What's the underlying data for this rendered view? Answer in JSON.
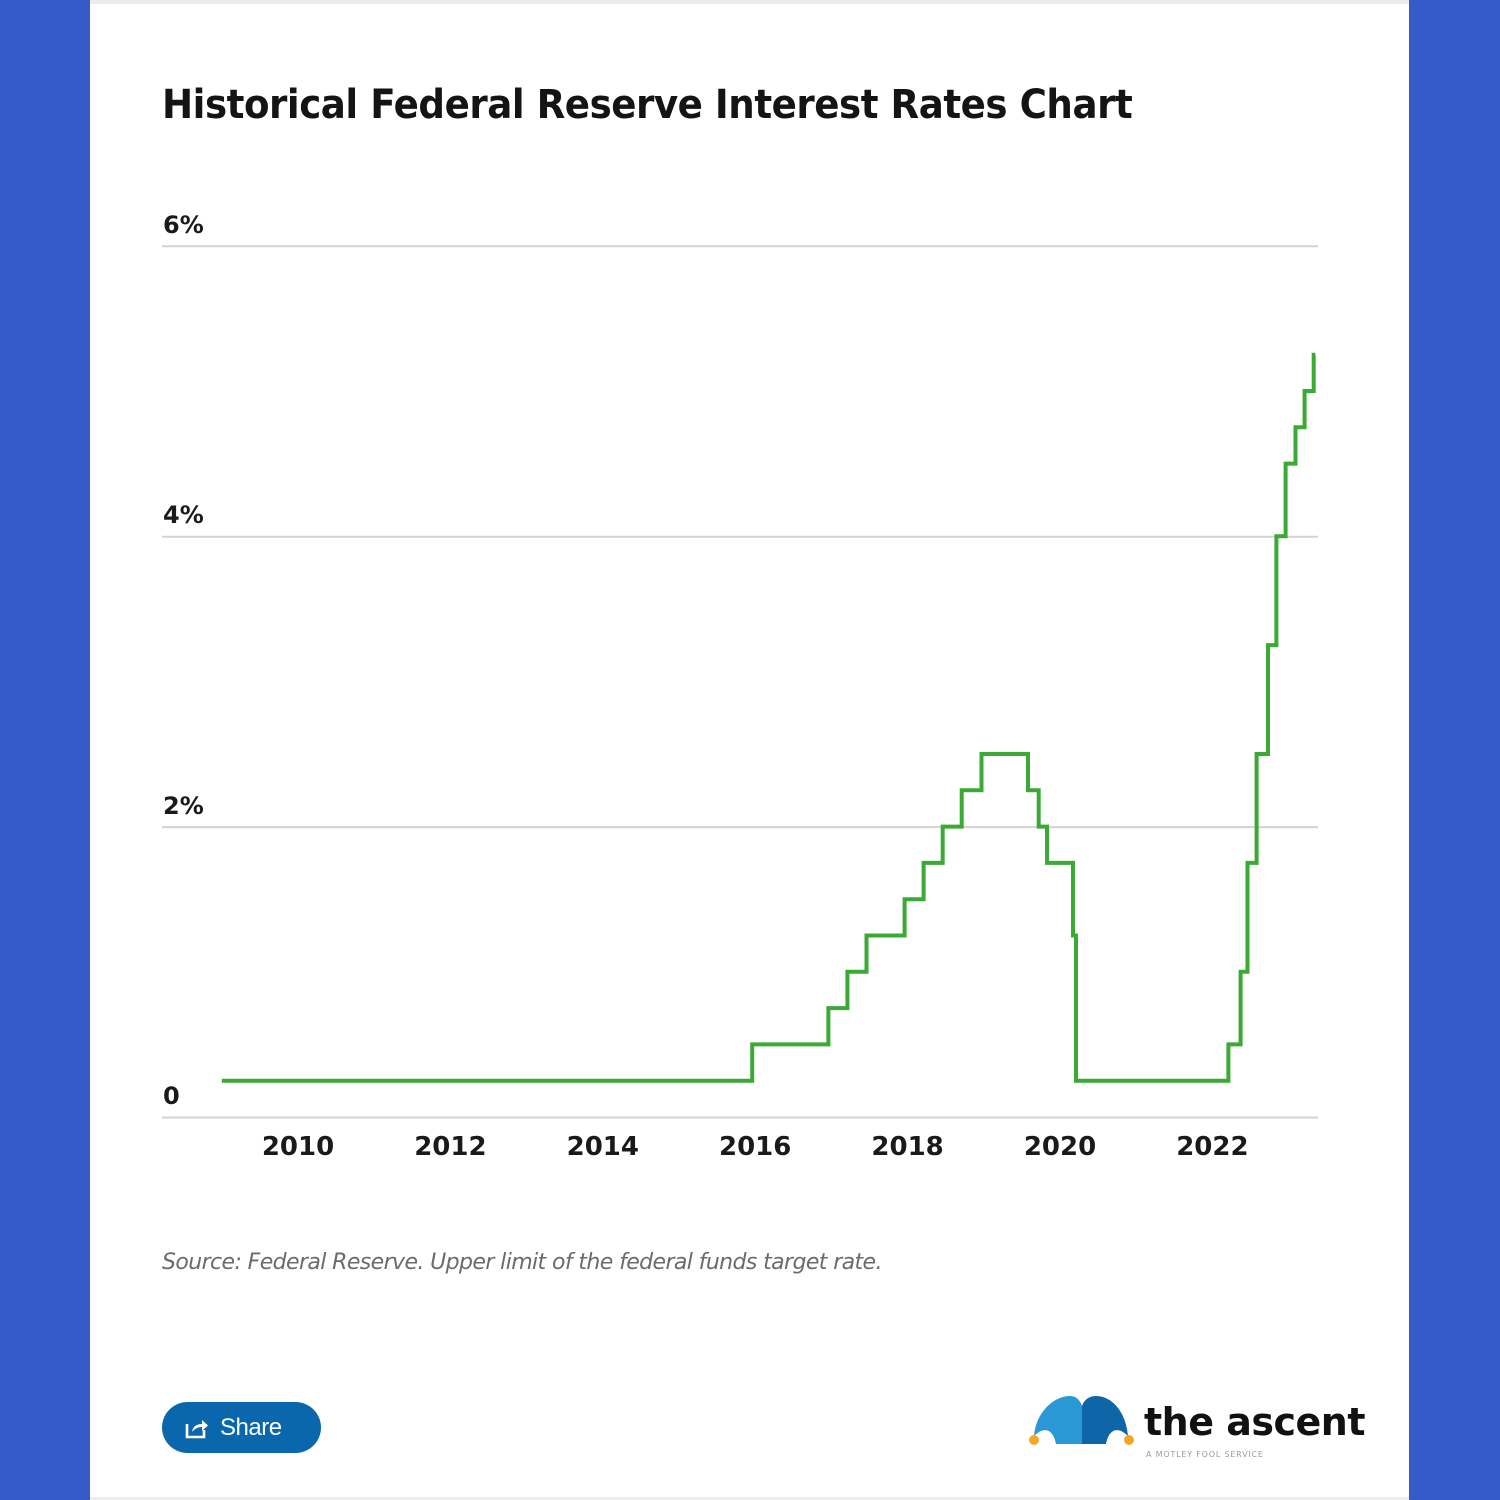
{
  "page": {
    "background_color": "#365ac7",
    "card_color": "#ffffff"
  },
  "title": "Historical Federal Reserve Interest Rates Chart",
  "source_note": "Source: Federal Reserve. Upper limit of the federal funds target rate.",
  "share_button": {
    "label": "Share",
    "icon": "share-icon",
    "color": "#0a67ad"
  },
  "brand": {
    "name": "the ascent",
    "tagline": "A MOTLEY FOOL SERVICE",
    "colors": {
      "light_blue": "#2a98d4",
      "dark_blue": "#0e66a8",
      "dot": "#f5a623"
    }
  },
  "chart_data": {
    "type": "line",
    "subtype": "step",
    "title": "Historical Federal Reserve Interest Rates Chart",
    "xlabel": "",
    "ylabel": "",
    "series_color": "#3aaa35",
    "grid": true,
    "legend": false,
    "ylim": [
      0,
      6
    ],
    "xlim": [
      2008.9,
      2023.5
    ],
    "y_ticks": [
      0,
      2,
      4,
      6
    ],
    "y_tick_labels": [
      "0",
      "2%",
      "4%",
      "6%"
    ],
    "x_ticks": [
      2010,
      2012,
      2014,
      2016,
      2018,
      2020,
      2022
    ],
    "x_tick_labels": [
      "2010",
      "2012",
      "2014",
      "2016",
      "2018",
      "2020",
      "2022"
    ],
    "series": [
      {
        "name": "Upper limit of the federal funds target rate (%)",
        "points": [
          [
            2009.0,
            0.25
          ],
          [
            2015.96,
            0.5
          ],
          [
            2016.96,
            0.75
          ],
          [
            2017.21,
            1.0
          ],
          [
            2017.46,
            1.25
          ],
          [
            2017.96,
            1.5
          ],
          [
            2018.21,
            1.75
          ],
          [
            2018.46,
            2.0
          ],
          [
            2018.71,
            2.25
          ],
          [
            2018.97,
            2.5
          ],
          [
            2019.58,
            2.25
          ],
          [
            2019.72,
            2.0
          ],
          [
            2019.83,
            1.75
          ],
          [
            2020.17,
            1.25
          ],
          [
            2020.21,
            0.25
          ],
          [
            2022.21,
            0.5
          ],
          [
            2022.37,
            1.0
          ],
          [
            2022.46,
            1.75
          ],
          [
            2022.58,
            2.5
          ],
          [
            2022.73,
            3.25
          ],
          [
            2022.84,
            4.0
          ],
          [
            2022.96,
            4.5
          ],
          [
            2023.09,
            4.75
          ],
          [
            2023.21,
            5.0
          ],
          [
            2023.33,
            5.25
          ],
          [
            2023.35,
            5.25
          ]
        ]
      }
    ]
  }
}
